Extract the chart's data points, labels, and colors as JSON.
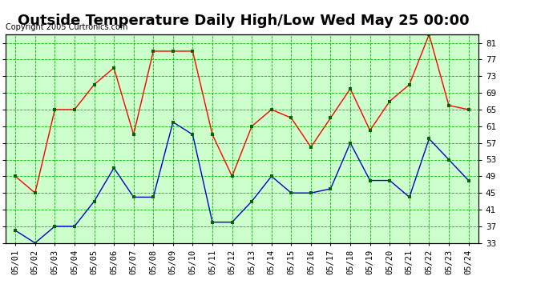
{
  "title": "Outside Temperature Daily High/Low Wed May 25 00:00",
  "copyright": "Copyright 2005 Curtronics.com",
  "x_labels": [
    "05/01",
    "05/02",
    "05/03",
    "05/04",
    "05/05",
    "05/06",
    "05/07",
    "05/08",
    "05/09",
    "05/10",
    "05/11",
    "05/12",
    "05/13",
    "05/14",
    "05/15",
    "05/16",
    "05/17",
    "05/18",
    "05/19",
    "05/20",
    "05/21",
    "05/22",
    "05/23",
    "05/24"
  ],
  "high_values": [
    49.0,
    45.0,
    65.0,
    65.0,
    71.0,
    75.0,
    59.0,
    79.0,
    79.0,
    79.0,
    59.0,
    49.0,
    61.0,
    65.0,
    63.0,
    56.0,
    63.0,
    70.0,
    60.0,
    67.0,
    71.0,
    83.0,
    66.0,
    65.0
  ],
  "low_values": [
    36.0,
    33.0,
    37.0,
    37.0,
    43.0,
    51.0,
    44.0,
    44.0,
    62.0,
    59.0,
    38.0,
    38.0,
    43.0,
    49.0,
    45.0,
    45.0,
    46.0,
    57.0,
    48.0,
    48.0,
    44.0,
    58.0,
    53.0,
    48.0
  ],
  "high_color": "#ff0000",
  "low_color": "#0000cc",
  "marker_color": "#006600",
  "background_color": "#ffffff",
  "plot_bg_color": "#ccffcc",
  "grid_color": "#00bb00",
  "title_color": "#000000",
  "border_color": "#000000",
  "ylim": [
    33.0,
    83.0
  ],
  "ytick_values": [
    33.0,
    37.0,
    41.0,
    45.0,
    49.0,
    53.0,
    57.0,
    61.0,
    65.0,
    69.0,
    73.0,
    77.0,
    81.0
  ],
  "title_fontsize": 13,
  "label_fontsize": 7.5,
  "copyright_fontsize": 7
}
